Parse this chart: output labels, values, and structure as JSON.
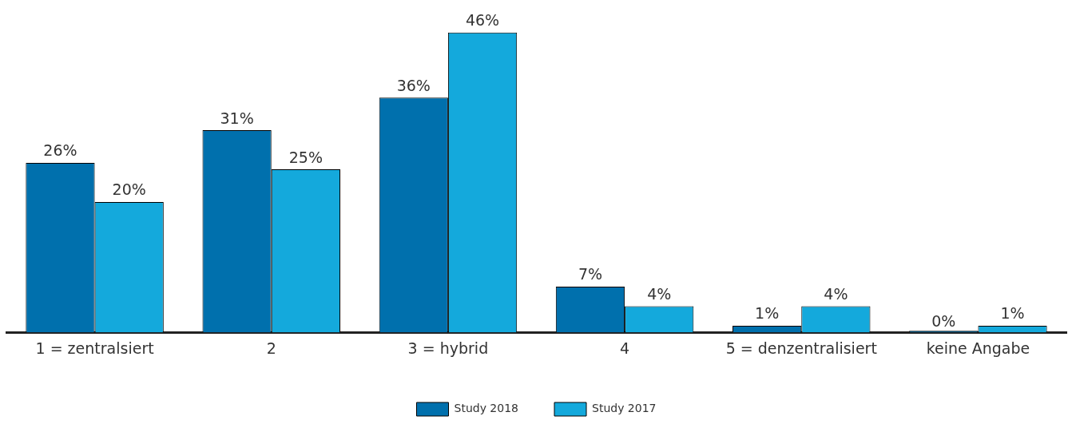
{
  "chart_data": {
    "type": "bar",
    "categories": [
      "1 = zentralsiert",
      "2",
      "3 = hybrid",
      "4",
      "5 = denzentralisiert",
      "keine Angabe"
    ],
    "series": [
      {
        "name": "Study 2018",
        "color": "#0070ad",
        "values": [
          26,
          31,
          36,
          7,
          1,
          0
        ],
        "value_labels": [
          "26%",
          "31%",
          "36%",
          "7%",
          "1%",
          "0%"
        ]
      },
      {
        "name": "Study 2017",
        "color": "#14a9dc",
        "values": [
          20,
          25,
          46,
          4,
          4,
          1
        ],
        "value_labels": [
          "20%",
          "25%",
          "46%",
          "4%",
          "4%",
          "1%"
        ]
      }
    ],
    "legend": "bottom",
    "grid": false
  }
}
